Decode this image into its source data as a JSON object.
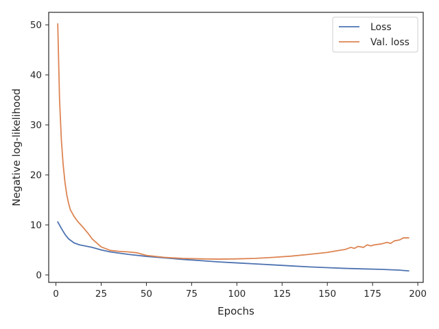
{
  "chart_data": {
    "type": "line",
    "title": "",
    "xlabel": "Epochs",
    "ylabel": "Negative log-likelihood",
    "xlim": [
      -4,
      203
    ],
    "ylim": [
      -1.5,
      52.5
    ],
    "xticks": [
      0,
      25,
      50,
      75,
      100,
      125,
      150,
      175,
      200
    ],
    "yticks": [
      0,
      10,
      20,
      30,
      40,
      50
    ],
    "grid": false,
    "legend": "top-right",
    "series": [
      {
        "name": "Loss",
        "color": "#4c72b0",
        "x": [
          1,
          3,
          5,
          7,
          10,
          13,
          16,
          20,
          25,
          30,
          40,
          50,
          60,
          70,
          80,
          90,
          100,
          110,
          120,
          130,
          140,
          150,
          160,
          170,
          180,
          190,
          195
        ],
        "y": [
          10.6,
          9.3,
          8.1,
          7.2,
          6.4,
          6.0,
          5.8,
          5.5,
          5.0,
          4.6,
          4.1,
          3.7,
          3.4,
          3.1,
          2.85,
          2.6,
          2.4,
          2.2,
          2.0,
          1.8,
          1.6,
          1.45,
          1.3,
          1.2,
          1.1,
          0.95,
          0.8
        ]
      },
      {
        "name": "Val. loss",
        "color": "#dd8452",
        "x": [
          1,
          2,
          3,
          4,
          5,
          6,
          7,
          8,
          10,
          12,
          15,
          18,
          20,
          25,
          30,
          35,
          40,
          45,
          50,
          60,
          70,
          80,
          90,
          100,
          110,
          120,
          130,
          140,
          150,
          155,
          160,
          163,
          165,
          167,
          170,
          172,
          174,
          176,
          180,
          183,
          185,
          187,
          190,
          192,
          195
        ],
        "y": [
          50.2,
          35.0,
          27.0,
          22.0,
          18.5,
          16.0,
          14.3,
          13.0,
          11.7,
          10.7,
          9.5,
          8.2,
          7.2,
          5.6,
          4.9,
          4.7,
          4.6,
          4.4,
          3.9,
          3.5,
          3.3,
          3.2,
          3.15,
          3.2,
          3.3,
          3.5,
          3.75,
          4.1,
          4.5,
          4.8,
          5.1,
          5.5,
          5.3,
          5.7,
          5.5,
          6.0,
          5.8,
          6.0,
          6.2,
          6.5,
          6.3,
          6.8,
          7.0,
          7.4,
          7.4
        ]
      }
    ]
  }
}
